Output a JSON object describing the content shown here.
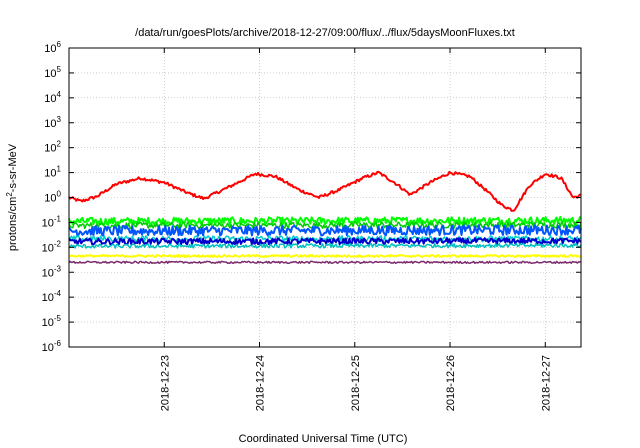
{
  "chart_data": {
    "type": "line",
    "title": "/data/run/goesPlots/archive/2018-12-27/09:00/flux/../flux/5daysMoonFluxes.txt",
    "xlabel": "Coordinated Universal Time (UTC)",
    "ylabel": {
      "base": "protons/cm",
      "sup": "2",
      "rest": "-s-sr-MeV"
    },
    "yscale": "log",
    "ylim_exponents": [
      -6,
      6
    ],
    "y_tick_base": "10",
    "y_ticks": [
      -6,
      -5,
      -4,
      -3,
      -2,
      -1,
      0,
      1,
      2,
      3,
      4,
      5,
      6
    ],
    "x_start": "2018-12-22T00:00",
    "x_end": "2018-12-27T09:00",
    "x_ticks": [
      "2018-12-23",
      "2018-12-24",
      "2018-12-25",
      "2018-12-26",
      "2018-12-27"
    ],
    "grid": true,
    "series": [
      {
        "color": "#ff0000",
        "width": 2,
        "noise": 0.06,
        "points": [
          [
            "2018-12-22T00:00",
            1.0
          ],
          [
            "2018-12-22T03:00",
            0.7
          ],
          [
            "2018-12-22T07:00",
            1.1
          ],
          [
            "2018-12-22T12:00",
            3.5
          ],
          [
            "2018-12-22T18:00",
            6.0
          ],
          [
            "2018-12-23T00:00",
            4.0
          ],
          [
            "2018-12-23T06:00",
            1.5
          ],
          [
            "2018-12-23T10:00",
            0.9
          ],
          [
            "2018-12-23T16:00",
            2.5
          ],
          [
            "2018-12-23T23:00",
            9.0
          ],
          [
            "2018-12-24T04:00",
            7.0
          ],
          [
            "2018-12-24T10:00",
            2.0
          ],
          [
            "2018-12-24T15:00",
            1.0
          ],
          [
            "2018-12-24T20:00",
            2.0
          ],
          [
            "2018-12-25T02:00",
            6.0
          ],
          [
            "2018-12-25T06:00",
            10.0
          ],
          [
            "2018-12-25T10:00",
            4.0
          ],
          [
            "2018-12-25T14:00",
            1.3
          ],
          [
            "2018-12-25T19:00",
            4.0
          ],
          [
            "2018-12-26T00:00",
            10.0
          ],
          [
            "2018-12-26T05:00",
            7.0
          ],
          [
            "2018-12-26T09:00",
            2.0
          ],
          [
            "2018-12-26T13:00",
            0.5
          ],
          [
            "2018-12-26T16:00",
            0.3
          ],
          [
            "2018-12-26T20:00",
            3.0
          ],
          [
            "2018-12-27T00:00",
            9.0
          ],
          [
            "2018-12-27T04:00",
            6.0
          ],
          [
            "2018-12-27T07:00",
            1.0
          ],
          [
            "2018-12-27T09:00",
            1.2
          ]
        ]
      },
      {
        "color": "#00ff00",
        "width": 2,
        "noise": 0.15,
        "points": [
          [
            "2018-12-22T00:00",
            0.11
          ],
          [
            "2018-12-27T09:00",
            0.12
          ]
        ]
      },
      {
        "color": "#00cc00",
        "width": 1.5,
        "noise": 0.12,
        "points": [
          [
            "2018-12-22T00:00",
            0.075
          ],
          [
            "2018-12-27T09:00",
            0.08
          ]
        ]
      },
      {
        "color": "#0055ff",
        "width": 2,
        "noise": 0.2,
        "points": [
          [
            "2018-12-22T00:00",
            0.045
          ],
          [
            "2018-12-27T09:00",
            0.05
          ]
        ]
      },
      {
        "color": "#00cccc",
        "width": 1.5,
        "noise": 0.12,
        "points": [
          [
            "2018-12-22T00:00",
            0.022
          ],
          [
            "2018-12-27T09:00",
            0.022
          ]
        ]
      },
      {
        "color": "#0000cc",
        "width": 2,
        "noise": 0.12,
        "points": [
          [
            "2018-12-22T00:00",
            0.017
          ],
          [
            "2018-12-27T09:00",
            0.018
          ]
        ]
      },
      {
        "color": "#00bfbf",
        "width": 1.5,
        "noise": 0.08,
        "points": [
          [
            "2018-12-22T00:00",
            0.011
          ],
          [
            "2018-12-27T09:00",
            0.012
          ]
        ]
      },
      {
        "color": "#ffff00",
        "width": 2,
        "noise": 0.04,
        "points": [
          [
            "2018-12-22T00:00",
            0.0045
          ],
          [
            "2018-12-27T09:00",
            0.0045
          ]
        ]
      },
      {
        "color": "#7b2a6b",
        "width": 1.5,
        "noise": 0.04,
        "points": [
          [
            "2018-12-22T00:00",
            0.0025
          ],
          [
            "2018-12-27T09:00",
            0.0025
          ]
        ]
      }
    ]
  }
}
